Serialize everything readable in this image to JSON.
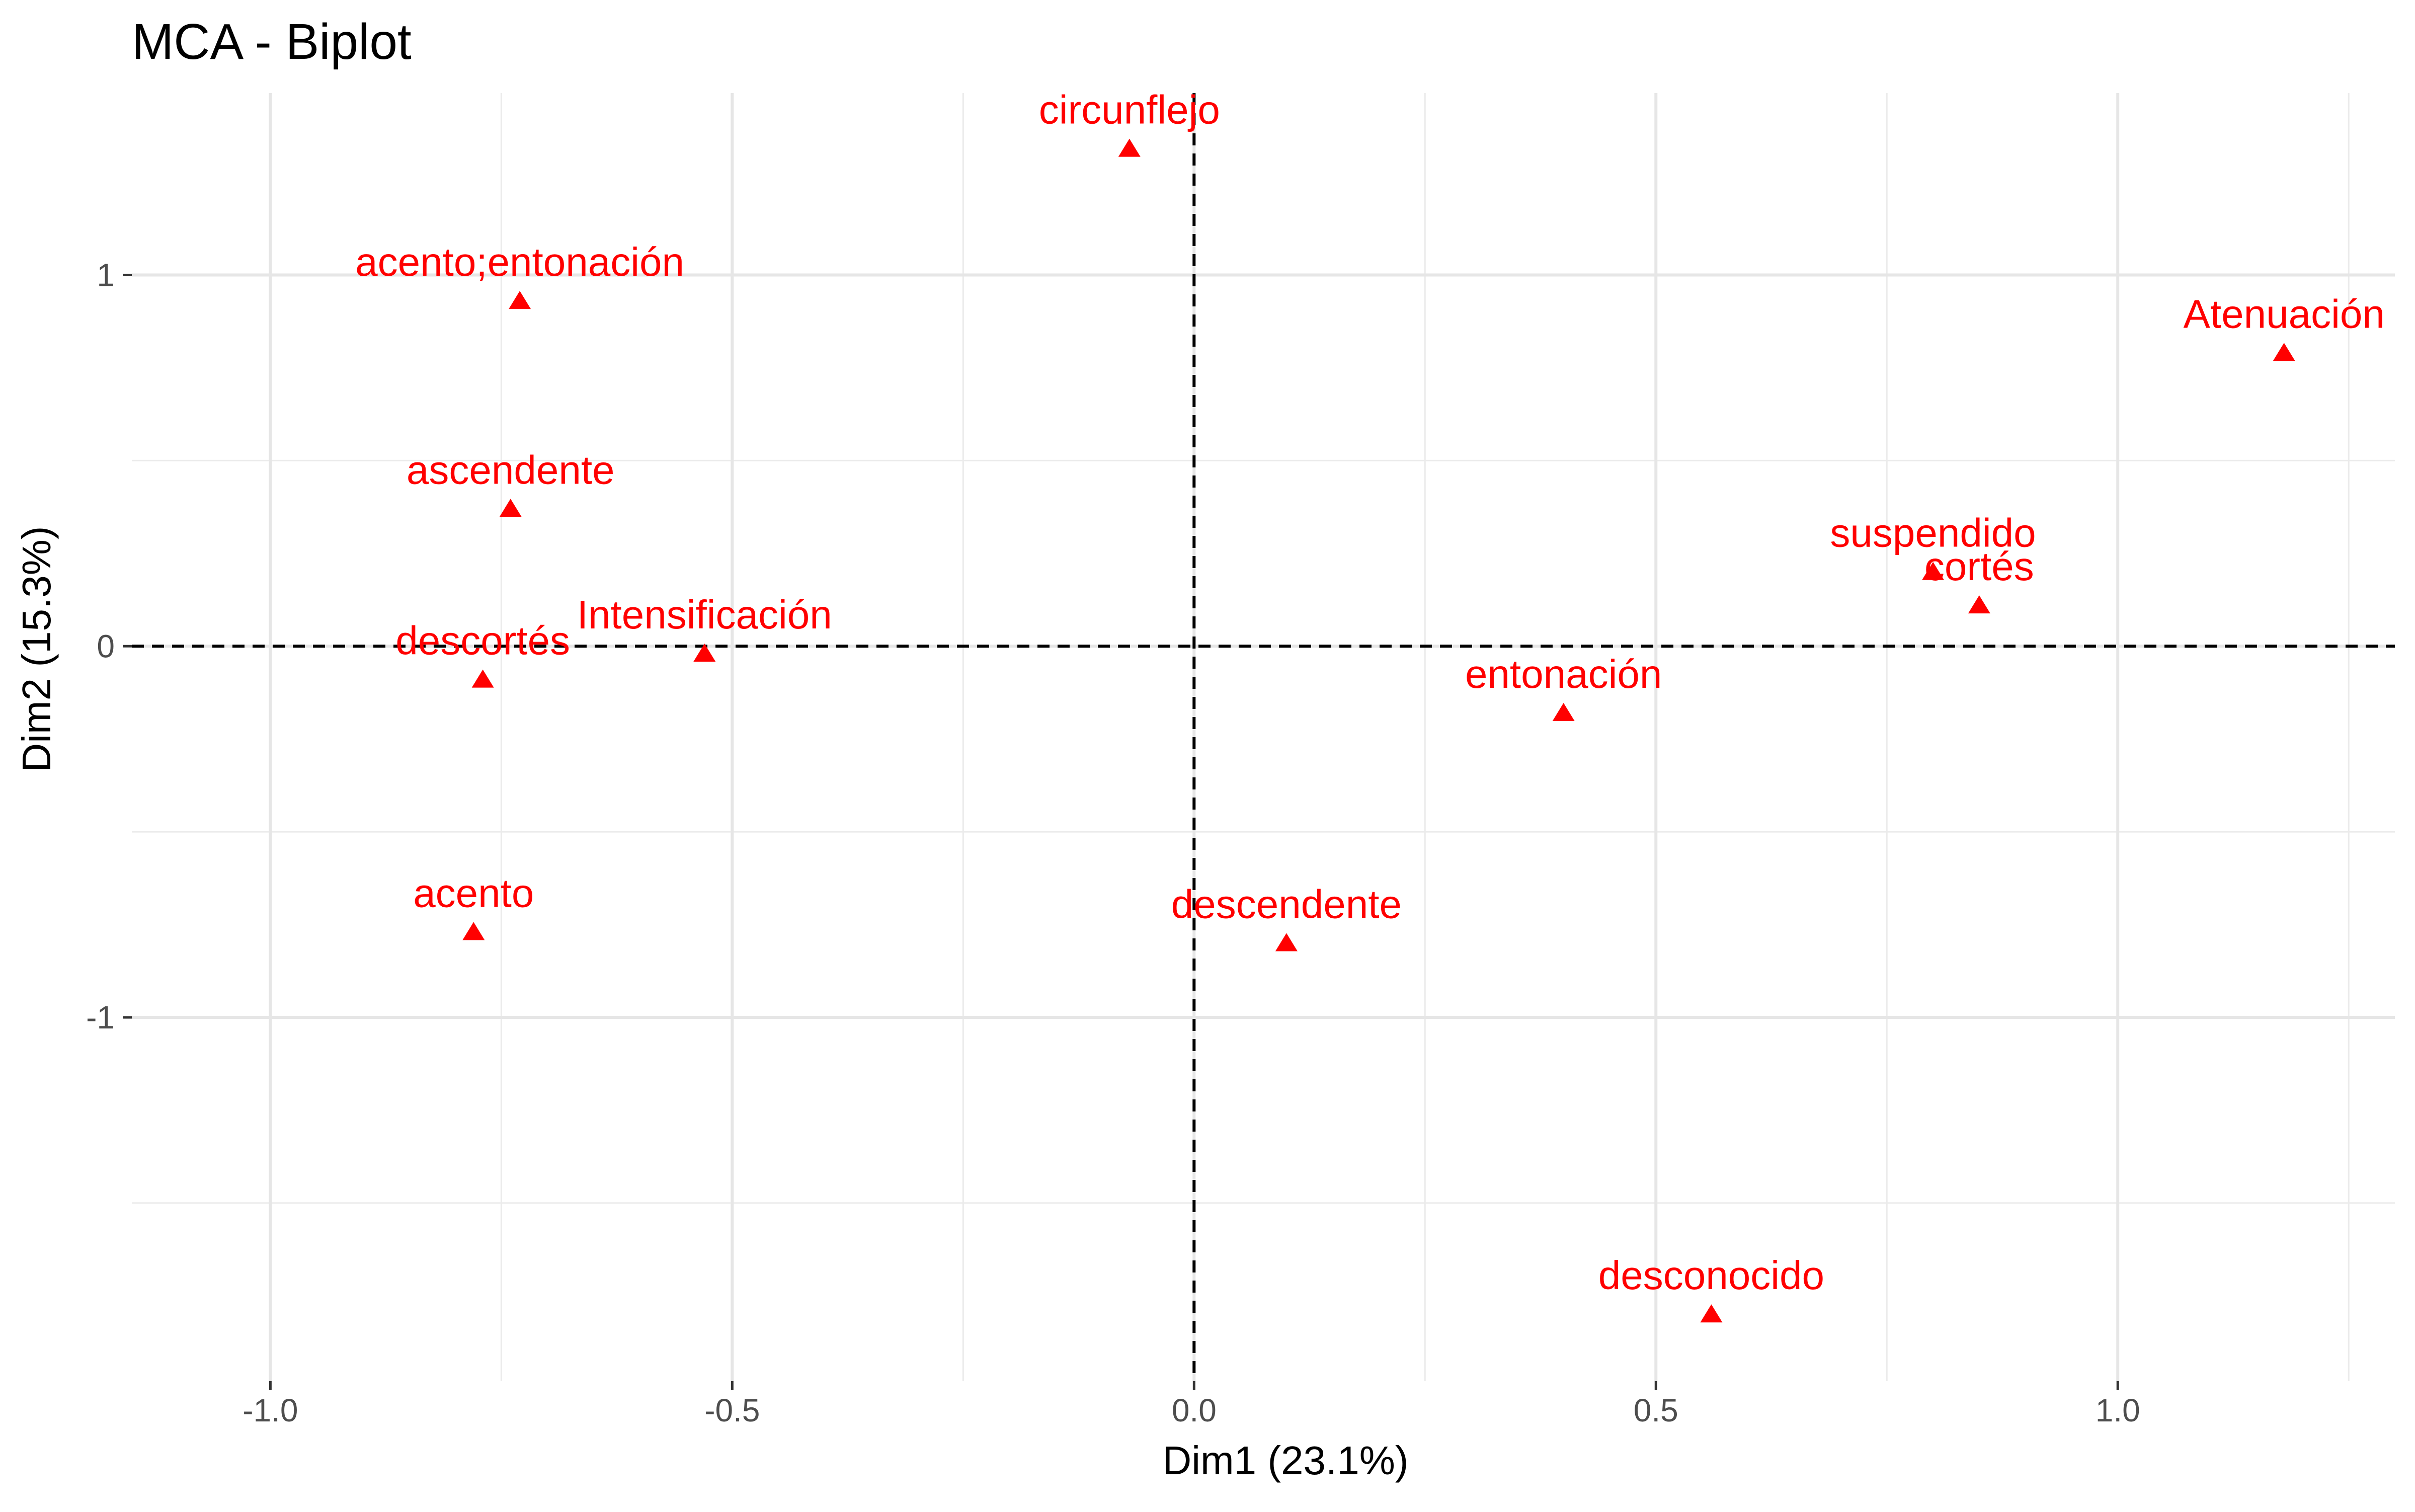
{
  "chart_data": {
    "type": "scatter",
    "title": "MCA - Biplot",
    "xlabel": "Dim1 (23.1%)",
    "ylabel": "Dim2 (15.3%)",
    "xlim": [
      -1.15,
      1.3
    ],
    "ylim": [
      -1.98,
      1.49
    ],
    "x_ticks": [
      -1.0,
      -0.5,
      0.0,
      0.5,
      1.0
    ],
    "x_tick_labels": [
      "-1.0",
      "-0.5",
      "0.0",
      "0.5",
      "1.0"
    ],
    "y_ticks": [
      -1,
      0,
      1
    ],
    "y_tick_labels": [
      "-1",
      "0",
      "1"
    ],
    "grid": true,
    "reference_lines": {
      "x": 0,
      "y": 0,
      "style": "dashed"
    },
    "marker": "triangle",
    "point_color": "#ff0000",
    "points": [
      {
        "label": "circunflejo",
        "x": -0.07,
        "y": 1.34
      },
      {
        "label": "acento;entonación",
        "x": -0.73,
        "y": 0.93
      },
      {
        "label": "Atenuación",
        "x": 1.18,
        "y": 0.79
      },
      {
        "label": "ascendente",
        "x": -0.74,
        "y": 0.37
      },
      {
        "label": "suspendido",
        "x": 0.8,
        "y": 0.2
      },
      {
        "label": "cortés",
        "x": 0.85,
        "y": 0.11
      },
      {
        "label": "Intensificación",
        "x": -0.53,
        "y": -0.02
      },
      {
        "label": "descortés",
        "x": -0.77,
        "y": -0.09
      },
      {
        "label": "entonación",
        "x": 0.4,
        "y": -0.18
      },
      {
        "label": "acento",
        "x": -0.78,
        "y": -0.77
      },
      {
        "label": "descendente",
        "x": 0.1,
        "y": -0.8
      },
      {
        "label": "desconocido",
        "x": 0.56,
        "y": -1.8
      }
    ]
  }
}
